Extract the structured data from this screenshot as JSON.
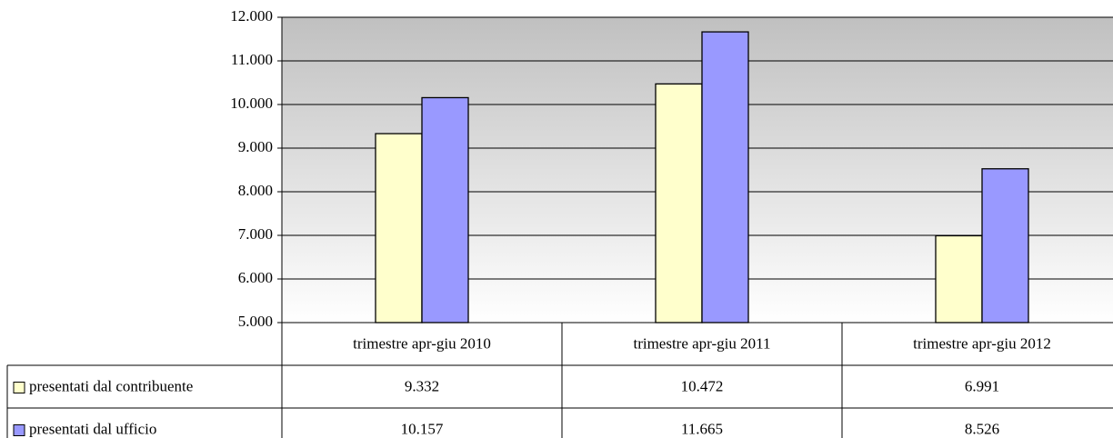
{
  "chart_data": {
    "type": "bar",
    "categories": [
      "trimestre apr-giu 2010",
      "trimestre apr-giu 2011",
      "trimestre apr-giu 2012"
    ],
    "series": [
      {
        "name": "presentati dal contribuente",
        "color": "#ffffcc",
        "values": [
          9332,
          10472,
          6991
        ],
        "value_labels": [
          "9.332",
          "10.472",
          "6.991"
        ]
      },
      {
        "name": "presentati dal ufficio",
        "color": "#9999ff",
        "values": [
          10157,
          11665,
          8526
        ],
        "value_labels": [
          "10.157",
          "11.665",
          "8.526"
        ]
      }
    ],
    "ylim": [
      5000,
      12000
    ],
    "yticks": [
      {
        "value": 5000,
        "label": "5.000"
      },
      {
        "value": 6000,
        "label": "6.000"
      },
      {
        "value": 7000,
        "label": "7.000"
      },
      {
        "value": 8000,
        "label": "8.000"
      },
      {
        "value": 9000,
        "label": "9.000"
      },
      {
        "value": 10000,
        "label": "10.000"
      },
      {
        "value": 11000,
        "label": "11.000"
      },
      {
        "value": 12000,
        "label": "12.000"
      }
    ],
    "grid": true
  }
}
